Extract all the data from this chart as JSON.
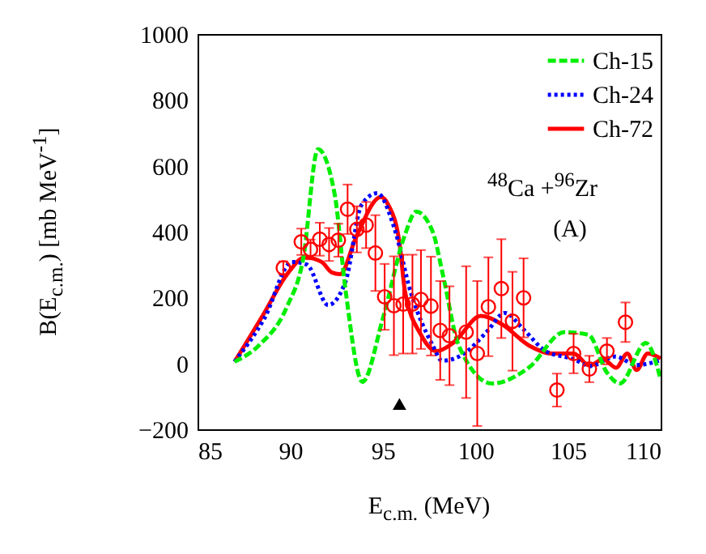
{
  "chart_data": {
    "type": "line",
    "xlabel": "E$_{c.m.}$  (MeV)",
    "ylabel": "B(E$_{c.m.}$)  [mb MeV$^{-1}$]",
    "annotations": [
      "$^{48}$Ca +$^{96}$Zr",
      "(A)"
    ],
    "xlim": [
      85,
      110
    ],
    "xticks": [
      85,
      90,
      95,
      100,
      105,
      110
    ],
    "ylim": [
      -200,
      1000
    ],
    "yticks": [
      -200,
      0,
      200,
      400,
      600,
      800,
      1000
    ],
    "legend": "top right",
    "series": [
      {
        "name": "Ch-15",
        "color": "#00ee00",
        "line_style": "dashed",
        "x": [
          87.0,
          88.3,
          89.8,
          90.7,
          91.5,
          92.4,
          93.0,
          93.9,
          95.0,
          96.2,
          96.8,
          97.7,
          98.25,
          99.1,
          100.9,
          102.9,
          104.8,
          106.1,
          107.1,
          107.8,
          109.2,
          110.0
        ],
        "values": [
          5,
          54,
          169,
          317,
          650,
          514,
          218,
          -56,
          136,
          391,
          461,
          399,
          268,
          54,
          -61,
          -12,
          95,
          87,
          -28,
          -61,
          62,
          -48
        ]
      },
      {
        "name": "Ch-24",
        "color": "#0000ff",
        "line_style": "dotted",
        "x": [
          87.0,
          88.6,
          90.1,
          90.9,
          92.05,
          93.0,
          93.85,
          94.7,
          95.6,
          96.5,
          97.7,
          98.2,
          99.4,
          100.6,
          101.6,
          102.6,
          103.8,
          105.3,
          106.2,
          107.55,
          108.7,
          110.0
        ],
        "values": [
          5,
          136,
          308,
          300,
          177,
          251,
          481,
          517,
          415,
          218,
          54,
          8,
          30,
          95,
          153,
          103,
          37,
          13,
          -8,
          21,
          -5,
          10
        ]
      },
      {
        "name": "Ch-72",
        "color": "#ff0000",
        "line_style": "solid",
        "x": [
          87.0,
          88.6,
          89.8,
          90.8,
          91.7,
          92.25,
          92.7,
          93.55,
          94.9,
          95.3,
          95.9,
          96.2,
          97.06,
          97.9,
          98.8,
          100.3,
          101.4,
          102.9,
          104.1,
          105.3,
          106.15,
          106.9,
          107.6,
          108.2,
          108.7,
          109.3,
          110.0
        ],
        "values": [
          5,
          153,
          268,
          322,
          308,
          276,
          271,
          382,
          505,
          481,
          366,
          218,
          87,
          37,
          62,
          144,
          120,
          54,
          30,
          30,
          -7,
          13,
          -13,
          30,
          -20,
          30,
          15
        ]
      },
      {
        "type": "scatter",
        "marker": "circle",
        "color": "#ff0000",
        "x": [
          89.63,
          90.6,
          91.1,
          91.6,
          92.1,
          92.6,
          93.1,
          93.6,
          94.1,
          94.6,
          95.1,
          95.6,
          96.1,
          96.6,
          97.06,
          97.6,
          98.1,
          98.6,
          99.5,
          100.1,
          100.7,
          101.4,
          102.0,
          102.6,
          104.4,
          105.3,
          106.15,
          107.1,
          108.1
        ],
        "values": [
          290,
          369,
          346,
          377,
          361,
          374,
          468,
          407,
          420,
          335,
          202,
          175,
          180,
          180,
          194,
          174,
          100,
          84,
          95,
          30,
          172,
          227,
          128,
          199,
          -81,
          30,
          -17,
          37,
          125
        ],
        "errors": [
          20,
          40,
          30,
          50,
          50,
          50,
          75,
          70,
          70,
          115,
          100,
          150,
          150,
          150,
          150,
          150,
          150,
          150,
          200,
          220,
          150,
          150,
          150,
          120,
          50,
          60,
          40,
          40,
          60
        ]
      },
      {
        "type": "scatter",
        "marker": "triangle",
        "color": "#000000",
        "x": [
          95.9
        ],
        "values": [
          -123
        ]
      }
    ]
  }
}
